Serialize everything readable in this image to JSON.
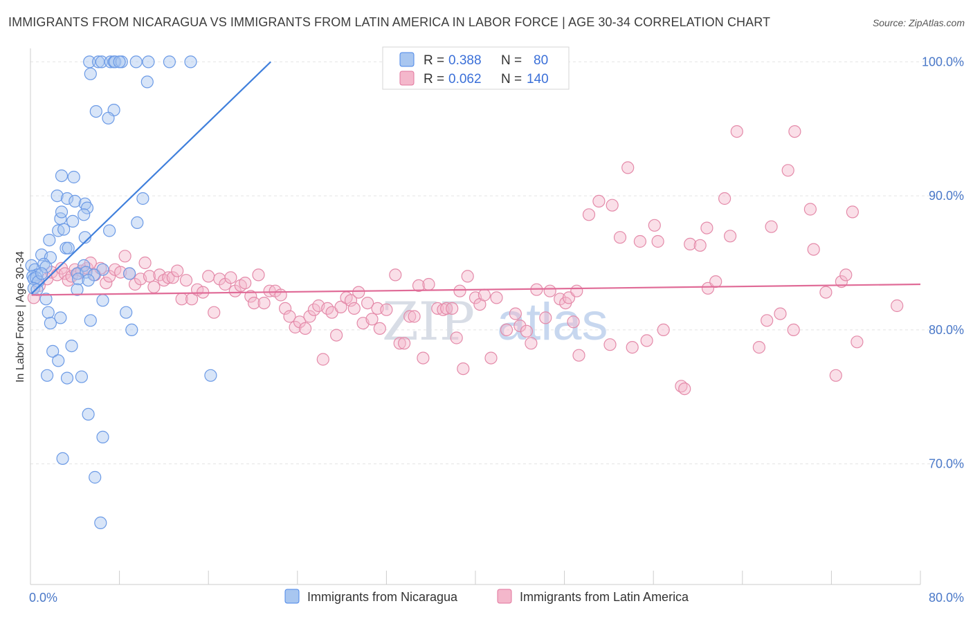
{
  "title": "IMMIGRANTS FROM NICARAGUA VS IMMIGRANTS FROM LATIN AMERICA IN LABOR FORCE | AGE 30-34 CORRELATION CHART",
  "source": "Source: ZipAtlas.com",
  "watermark": {
    "part1": "ZIP",
    "part2": "atlas"
  },
  "legend": {
    "r_label": "R =",
    "n_label": "N =",
    "rows": [
      {
        "r": "0.388",
        "n": "80"
      },
      {
        "r": "0.062",
        "n": "140"
      }
    ]
  },
  "chart_data": {
    "type": "scatter",
    "title": "IMMIGRANTS FROM NICARAGUA VS IMMIGRANTS FROM LATIN AMERICA IN LABOR FORCE | AGE 30-34 CORRELATION CHART",
    "xlabel": "",
    "ylabel": "In Labor Force | Age 30-34",
    "xlim": [
      0,
      80
    ],
    "ylim": [
      61,
      101
    ],
    "x_tick_labels": [
      "0.0%",
      "80.0%"
    ],
    "y_ticks": [
      70,
      80,
      90,
      100
    ],
    "y_tick_labels": [
      "70.0%",
      "80.0%",
      "90.0%",
      "100.0%"
    ],
    "grid": true,
    "legend_position": "top-center",
    "colors": {
      "blue": "#4a86e8",
      "blue_fill": "#a8c6f0",
      "pink": "#e2759d",
      "pink_fill": "#f4b7cb",
      "tick": "#4a78c8"
    },
    "series": [
      {
        "name": "Immigrants from Nicaragua",
        "color": "#4a86e8",
        "r": 0.388,
        "n": 80,
        "trend": {
          "x": [
            0.1,
            21.6
          ],
          "y": [
            82.7,
            100.0
          ]
        },
        "points": [
          [
            5.3,
            100
          ],
          [
            6.1,
            100
          ],
          [
            6.4,
            100
          ],
          [
            7.2,
            100
          ],
          [
            7.5,
            100
          ],
          [
            7.6,
            100
          ],
          [
            8.2,
            100
          ],
          [
            9.5,
            100
          ],
          [
            10.6,
            100
          ],
          [
            12.5,
            100
          ],
          [
            14.4,
            100
          ],
          [
            8.0,
            100
          ],
          [
            5.4,
            99.1
          ],
          [
            10.5,
            98.5
          ],
          [
            5.9,
            96.3
          ],
          [
            7.5,
            96.4
          ],
          [
            7.0,
            95.8
          ],
          [
            2.8,
            91.5
          ],
          [
            3.9,
            91.4
          ],
          [
            2.4,
            90.0
          ],
          [
            3.3,
            89.8
          ],
          [
            4.0,
            89.6
          ],
          [
            4.9,
            89.4
          ],
          [
            5.1,
            89.1
          ],
          [
            10.1,
            89.8
          ],
          [
            2.7,
            88.3
          ],
          [
            2.8,
            88.8
          ],
          [
            4.8,
            88.6
          ],
          [
            3.8,
            88.1
          ],
          [
            9.6,
            88.0
          ],
          [
            2.5,
            87.4
          ],
          [
            3.0,
            87.5
          ],
          [
            7.1,
            87.4
          ],
          [
            1.7,
            86.7
          ],
          [
            4.9,
            86.9
          ],
          [
            3.2,
            86.1
          ],
          [
            3.4,
            86.1
          ],
          [
            1.0,
            85.6
          ],
          [
            1.8,
            85.4
          ],
          [
            0.1,
            84.8
          ],
          [
            0.4,
            84.5
          ],
          [
            1.2,
            84.9
          ],
          [
            1.4,
            84.7
          ],
          [
            4.8,
            84.8
          ],
          [
            6.5,
            84.5
          ],
          [
            0.6,
            84.1
          ],
          [
            0.2,
            84.0
          ],
          [
            0.3,
            83.8
          ],
          [
            0.5,
            83.9
          ],
          [
            0.7,
            83.6
          ],
          [
            1.0,
            84.2
          ],
          [
            4.2,
            84.2
          ],
          [
            5.0,
            84.3
          ],
          [
            5.7,
            84.1
          ],
          [
            8.9,
            84.2
          ],
          [
            4.3,
            83.8
          ],
          [
            5.2,
            83.7
          ],
          [
            0.3,
            83.1
          ],
          [
            0.6,
            83.0
          ],
          [
            4.2,
            83.0
          ],
          [
            1.4,
            82.3
          ],
          [
            6.5,
            82.2
          ],
          [
            1.6,
            81.3
          ],
          [
            8.6,
            81.3
          ],
          [
            2.7,
            80.9
          ],
          [
            1.8,
            80.5
          ],
          [
            5.4,
            80.7
          ],
          [
            9.1,
            80.0
          ],
          [
            2.0,
            78.4
          ],
          [
            3.7,
            78.8
          ],
          [
            2.5,
            77.7
          ],
          [
            1.5,
            76.6
          ],
          [
            3.3,
            76.4
          ],
          [
            4.6,
            76.5
          ],
          [
            16.2,
            76.6
          ],
          [
            5.2,
            73.7
          ],
          [
            6.5,
            72.0
          ],
          [
            2.9,
            70.4
          ],
          [
            5.8,
            69.0
          ],
          [
            6.3,
            65.6
          ]
        ]
      },
      {
        "name": "Immigrants from Latin America",
        "color": "#e2759d",
        "r": 0.062,
        "n": 140,
        "trend": {
          "x": [
            0.1,
            80.0
          ],
          "y": [
            82.6,
            83.4
          ]
        },
        "points": [
          [
            0.3,
            82.4
          ],
          [
            0.8,
            83.3
          ],
          [
            1.5,
            83.8
          ],
          [
            1.9,
            84.3
          ],
          [
            2.4,
            84.1
          ],
          [
            2.8,
            84.6
          ],
          [
            3.1,
            84.2
          ],
          [
            3.4,
            83.7
          ],
          [
            3.7,
            84.0
          ],
          [
            4.0,
            84.5
          ],
          [
            4.3,
            84.2
          ],
          [
            4.6,
            84.4
          ],
          [
            5.1,
            84.6
          ],
          [
            5.4,
            85.0
          ],
          [
            5.8,
            84.1
          ],
          [
            6.3,
            84.6
          ],
          [
            6.8,
            83.5
          ],
          [
            7.1,
            84.0
          ],
          [
            7.6,
            84.5
          ],
          [
            8.1,
            84.3
          ],
          [
            8.5,
            85.5
          ],
          [
            8.9,
            84.2
          ],
          [
            9.4,
            83.4
          ],
          [
            9.9,
            83.8
          ],
          [
            10.3,
            85.0
          ],
          [
            10.7,
            84.0
          ],
          [
            11.1,
            83.2
          ],
          [
            11.6,
            84.1
          ],
          [
            12.0,
            83.7
          ],
          [
            12.4,
            83.9
          ],
          [
            12.8,
            83.9
          ],
          [
            13.2,
            84.4
          ],
          [
            13.6,
            82.3
          ],
          [
            14.0,
            83.7
          ],
          [
            14.5,
            82.3
          ],
          [
            15.0,
            83.0
          ],
          [
            15.5,
            82.8
          ],
          [
            16.0,
            84.0
          ],
          [
            16.5,
            81.3
          ],
          [
            17.0,
            83.8
          ],
          [
            17.5,
            83.4
          ],
          [
            18.0,
            83.9
          ],
          [
            18.4,
            82.9
          ],
          [
            18.9,
            83.3
          ],
          [
            19.3,
            83.5
          ],
          [
            19.8,
            82.5
          ],
          [
            20.1,
            82.0
          ],
          [
            20.5,
            84.1
          ],
          [
            21.0,
            82.0
          ],
          [
            21.5,
            82.9
          ],
          [
            22.0,
            82.9
          ],
          [
            22.5,
            82.6
          ],
          [
            22.9,
            81.6
          ],
          [
            23.3,
            81.0
          ],
          [
            23.8,
            80.2
          ],
          [
            24.2,
            80.6
          ],
          [
            24.7,
            80.1
          ],
          [
            25.1,
            81.0
          ],
          [
            25.5,
            81.5
          ],
          [
            25.9,
            81.8
          ],
          [
            26.3,
            77.8
          ],
          [
            26.7,
            81.6
          ],
          [
            27.1,
            81.3
          ],
          [
            27.5,
            79.6
          ],
          [
            27.9,
            81.7
          ],
          [
            28.4,
            82.4
          ],
          [
            28.8,
            82.2
          ],
          [
            29.1,
            81.6
          ],
          [
            29.5,
            82.8
          ],
          [
            29.9,
            80.5
          ],
          [
            30.3,
            82.0
          ],
          [
            30.7,
            80.8
          ],
          [
            31.2,
            81.6
          ],
          [
            31.4,
            80.1
          ],
          [
            32.0,
            81.5
          ],
          [
            32.8,
            84.1
          ],
          [
            33.2,
            79.0
          ],
          [
            33.6,
            79.0
          ],
          [
            34.1,
            81.0
          ],
          [
            34.5,
            81.0
          ],
          [
            34.9,
            83.3
          ],
          [
            35.3,
            77.9
          ],
          [
            35.8,
            83.4
          ],
          [
            36.6,
            81.6
          ],
          [
            37.1,
            81.5
          ],
          [
            37.4,
            81.6
          ],
          [
            37.9,
            81.6
          ],
          [
            38.3,
            79.4
          ],
          [
            38.6,
            82.9
          ],
          [
            38.9,
            77.1
          ],
          [
            39.3,
            84.0
          ],
          [
            40.0,
            82.4
          ],
          [
            40.4,
            81.9
          ],
          [
            40.8,
            82.6
          ],
          [
            41.4,
            77.9
          ],
          [
            41.9,
            82.4
          ],
          [
            42.8,
            80.0
          ],
          [
            43.6,
            81.2
          ],
          [
            44.0,
            80.3
          ],
          [
            44.6,
            79.9
          ],
          [
            45.0,
            79.0
          ],
          [
            45.5,
            83.0
          ],
          [
            46.3,
            80.9
          ],
          [
            46.7,
            82.9
          ],
          [
            47.6,
            82.3
          ],
          [
            48.1,
            82.0
          ],
          [
            48.4,
            82.4
          ],
          [
            48.8,
            80.6
          ],
          [
            49.1,
            82.9
          ],
          [
            49.3,
            78.1
          ],
          [
            50.2,
            88.6
          ],
          [
            51.1,
            89.6
          ],
          [
            52.1,
            78.9
          ],
          [
            52.3,
            89.3
          ],
          [
            53.0,
            86.9
          ],
          [
            53.7,
            92.1
          ],
          [
            54.1,
            78.7
          ],
          [
            54.8,
            86.6
          ],
          [
            55.4,
            79.2
          ],
          [
            56.1,
            87.8
          ],
          [
            56.4,
            86.6
          ],
          [
            56.9,
            80.0
          ],
          [
            58.5,
            75.8
          ],
          [
            58.8,
            75.6
          ],
          [
            59.3,
            86.4
          ],
          [
            60.2,
            86.3
          ],
          [
            60.8,
            87.6
          ],
          [
            60.9,
            83.1
          ],
          [
            61.6,
            83.6
          ],
          [
            62.4,
            89.8
          ],
          [
            62.9,
            87.0
          ],
          [
            63.5,
            94.8
          ],
          [
            65.5,
            78.7
          ],
          [
            66.2,
            80.7
          ],
          [
            66.6,
            87.7
          ],
          [
            67.4,
            81.2
          ],
          [
            68.1,
            91.9
          ],
          [
            68.6,
            80.0
          ],
          [
            68.7,
            94.8
          ],
          [
            70.1,
            89.0
          ],
          [
            70.4,
            86.0
          ],
          [
            71.5,
            82.8
          ],
          [
            72.4,
            76.6
          ],
          [
            72.9,
            83.6
          ],
          [
            73.3,
            84.1
          ],
          [
            73.9,
            88.8
          ],
          [
            74.3,
            79.1
          ],
          [
            77.9,
            81.8
          ]
        ]
      }
    ]
  },
  "bottom_legend": [
    {
      "label": "Immigrants from Nicaragua"
    },
    {
      "label": "Immigrants from Latin America"
    }
  ]
}
